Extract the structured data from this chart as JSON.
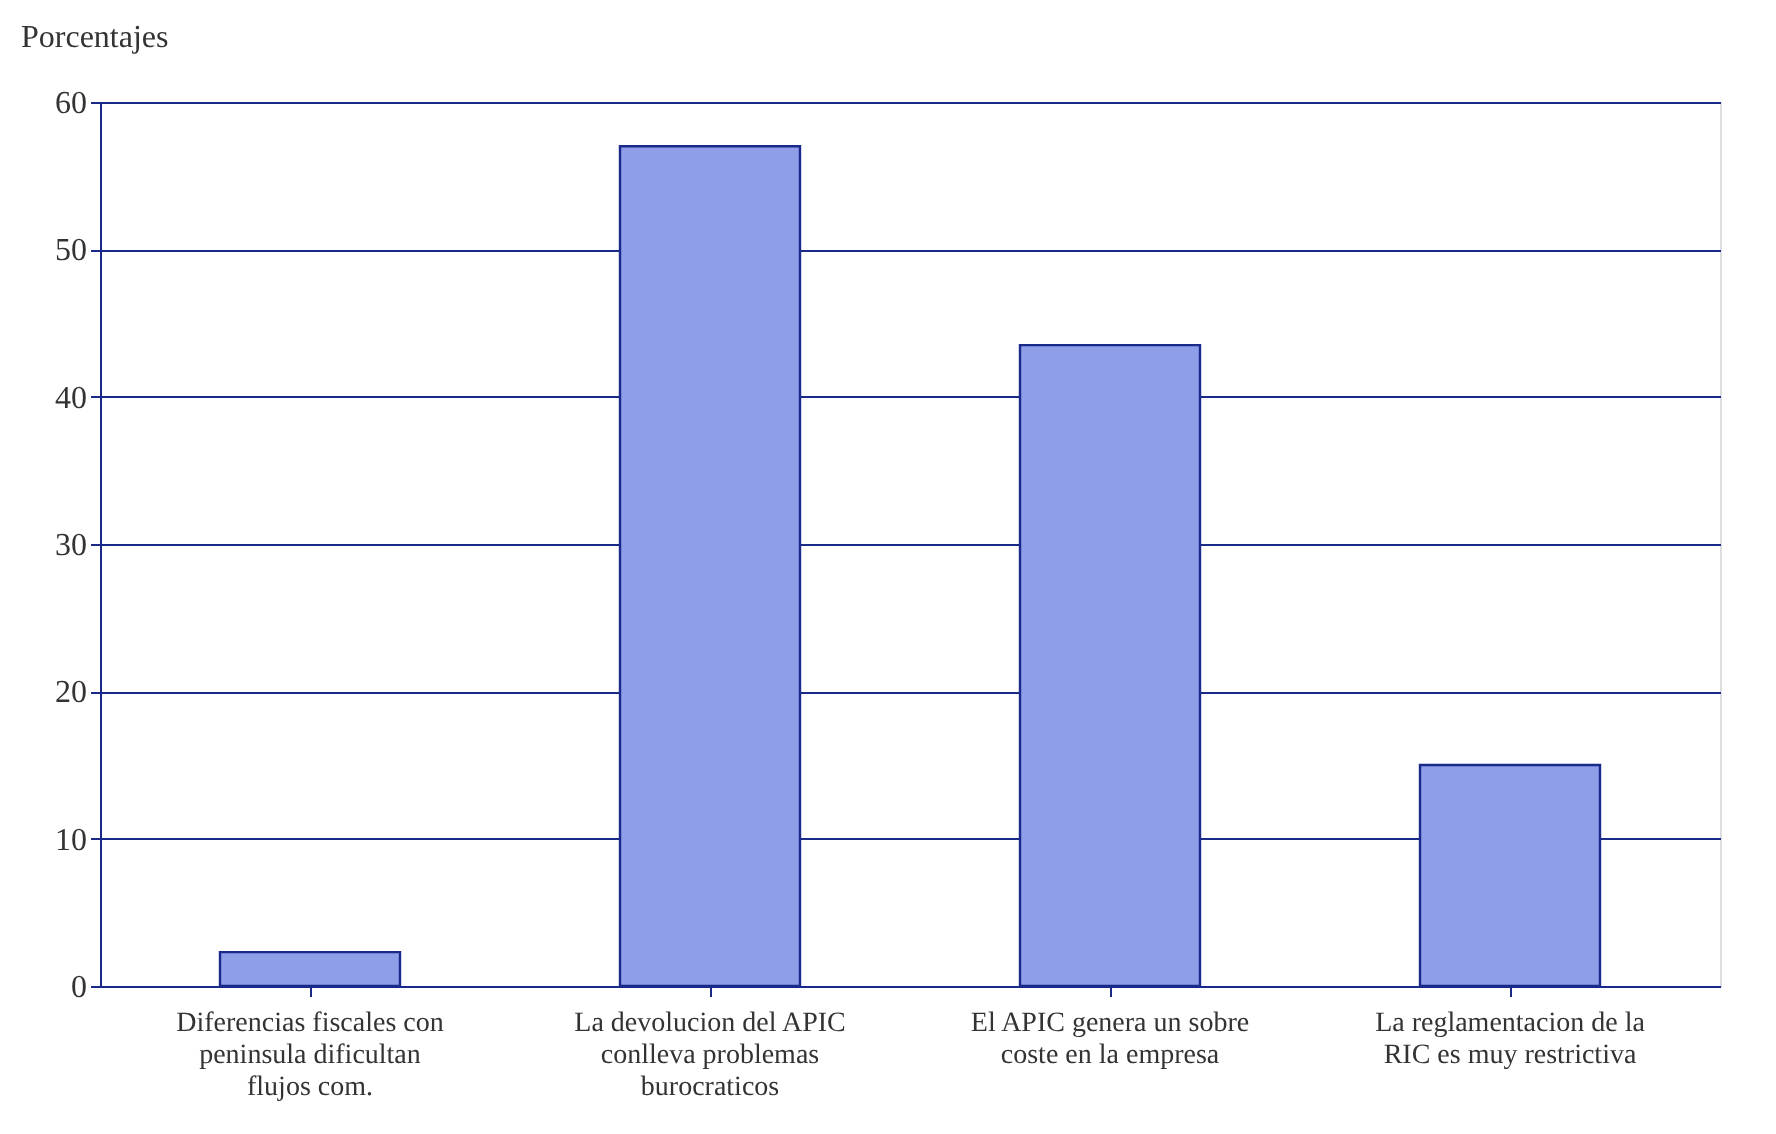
{
  "chart_data": {
    "type": "bar",
    "ylabel": "Porcentajes",
    "categories": [
      "Diferencias fiscales con peninsula dificultan flujos com.",
      "La devolucion del APIC conlleva problemas burocraticos",
      "El APIC genera un sobre coste en la empresa",
      "La reglamentacion de la RIC es muy restrictiva"
    ],
    "values": [
      2.3,
      57,
      43.5,
      15
    ],
    "color": "#8e9ee8",
    "ylim": [
      0,
      60
    ],
    "yticks": [
      0,
      10,
      20,
      30,
      40,
      50,
      60
    ],
    "grid": "y"
  }
}
